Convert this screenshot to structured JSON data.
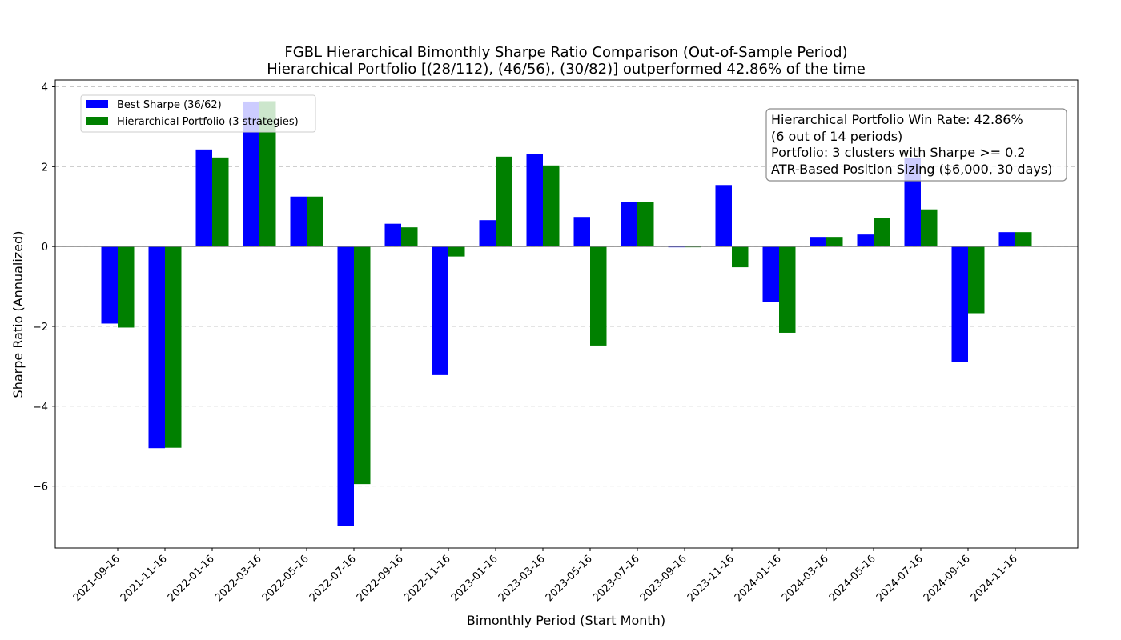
{
  "chart_data": {
    "type": "bar",
    "title": "FGBL Hierarchical Bimonthly Sharpe Ratio Comparison (Out-of-Sample Period)",
    "subtitle": "Hierarchical Portfolio [(28/112), (46/56), (30/82)] outperformed 42.86% of the time",
    "xlabel": "Bimonthly Period (Start Month)",
    "ylabel": "Sharpe Ratio (Annualized)",
    "ylim": [
      -7.55,
      4.17
    ],
    "yticks": [
      {
        "value": -6,
        "label": "−6"
      },
      {
        "value": -4,
        "label": "−4"
      },
      {
        "value": -2,
        "label": "−2"
      },
      {
        "value": 0,
        "label": "0"
      },
      {
        "value": 2,
        "label": "2"
      },
      {
        "value": 4,
        "label": "4"
      }
    ],
    "grid": "y-dashed",
    "legend_position": "top-left",
    "categories": [
      "2021-09-16",
      "2021-11-16",
      "2022-01-16",
      "2022-03-16",
      "2022-05-16",
      "2022-07-16",
      "2022-09-16",
      "2022-11-16",
      "2023-01-16",
      "2023-03-16",
      "2023-05-16",
      "2023-07-16",
      "2023-09-16",
      "2023-11-16",
      "2024-01-16",
      "2024-03-16",
      "2024-05-16",
      "2024-07-16",
      "2024-09-16",
      "2024-11-16"
    ],
    "series": [
      {
        "name": "Best Sharpe (36/62)",
        "color": "#0000ff",
        "values": [
          -1.93,
          -5.05,
          2.43,
          3.63,
          1.25,
          -6.99,
          0.57,
          -3.22,
          0.66,
          2.32,
          0.74,
          1.11,
          -0.02,
          1.54,
          -1.39,
          0.24,
          0.3,
          2.22,
          -2.89,
          0.36
        ]
      },
      {
        "name": "Hierarchical Portfolio (3 strategies)",
        "color": "#008000",
        "values": [
          -2.03,
          -5.04,
          2.23,
          3.64,
          1.25,
          -5.95,
          0.48,
          -0.25,
          2.25,
          2.03,
          -2.48,
          1.11,
          -0.02,
          -0.52,
          -2.16,
          0.24,
          0.72,
          0.93,
          -1.67,
          0.36
        ]
      }
    ],
    "annotation": [
      "Hierarchical Portfolio Win Rate: 42.86%",
      "(6 out of 14 periods)",
      "Portfolio: 3 clusters with Sharpe >= 0.2",
      "ATR-Based Position Sizing ($6,000, 30 days)"
    ]
  }
}
